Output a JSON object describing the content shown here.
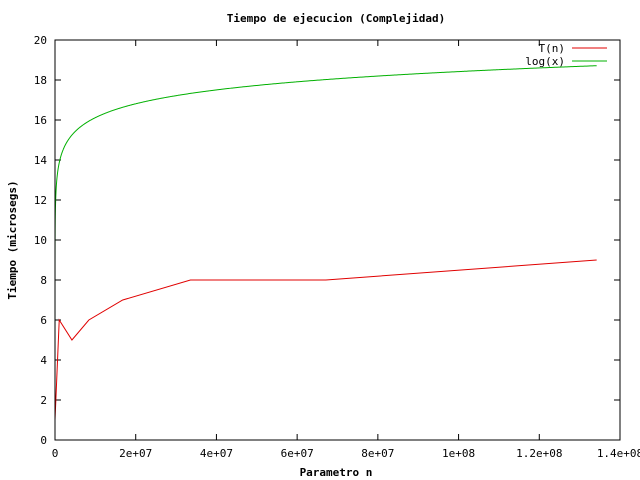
{
  "chart_data": {
    "type": "line",
    "title": "Tiempo de ejecucion (Complejidad)",
    "xlabel": "Parametro n",
    "ylabel": "Tiempo (microsegs)",
    "xlim": [
      0,
      140000000
    ],
    "ylim": [
      0,
      20
    ],
    "x_ticks": [
      0,
      20000000,
      40000000,
      60000000,
      80000000,
      100000000,
      120000000,
      140000000
    ],
    "x_tick_labels": [
      "0",
      "2e+07",
      "4e+07",
      "6e+07",
      "8e+07",
      "1e+08",
      "1.2e+08",
      "1.4e+08"
    ],
    "y_ticks": [
      0,
      2,
      4,
      6,
      8,
      10,
      12,
      14,
      16,
      18,
      20
    ],
    "y_tick_labels": [
      "0",
      "2",
      "4",
      "6",
      "8",
      "10",
      "12",
      "14",
      "16",
      "18",
      "20"
    ],
    "grid": false,
    "legend_position": "top-right",
    "series": [
      {
        "name": "T(n)",
        "color": "#e00000",
        "kind": "points",
        "x": [
          1,
          1048576,
          4194304,
          8388608,
          16777216,
          33554432,
          67108864,
          134217728
        ],
        "y": [
          1,
          6,
          5,
          6,
          7,
          8,
          8,
          9
        ]
      },
      {
        "name": "log(x)",
        "color": "#00b000",
        "kind": "function",
        "function": "ln",
        "domain": [
          1,
          134217728
        ]
      }
    ]
  }
}
